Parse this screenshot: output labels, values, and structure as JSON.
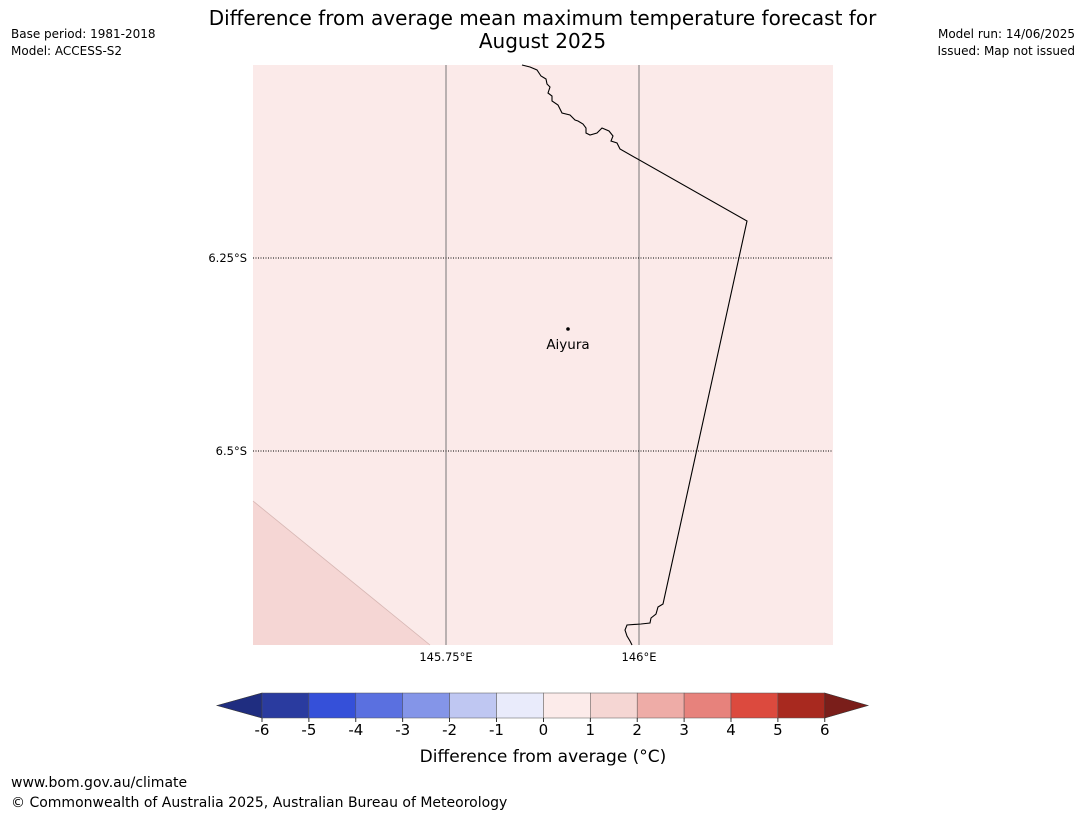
{
  "header": {
    "title_line1": "Difference from average mean maximum temperature forecast for",
    "title_line2": "August 2025",
    "base_period": "Base period: 1981-2018",
    "model": "Model: ACCESS-S2",
    "model_run": "Model run: 14/06/2025",
    "issued": "Issued: Map not issued"
  },
  "map": {
    "place": "Aiyura",
    "lat_labels": [
      "6.25°S",
      "6.5°S"
    ],
    "lon_labels": [
      "145.75°E",
      "146°E"
    ],
    "background_color": "#fbeae9",
    "corner_color": "#f5d6d4"
  },
  "colorbar": {
    "label": "Difference from average (°C)",
    "ticks": [
      "-6",
      "-5",
      "-4",
      "-3",
      "-2",
      "-1",
      "0",
      "1",
      "2",
      "3",
      "4",
      "5",
      "6"
    ],
    "colors": [
      "#2a3b9f",
      "#3550d9",
      "#5a70e0",
      "#8495e8",
      "#bfc7f2",
      "#e9ebfb",
      "#fcebea",
      "#f5d6d3",
      "#eeaca7",
      "#e7827c",
      "#dc4a3e",
      "#a8291f"
    ],
    "under_color": "#1f2d80",
    "over_color": "#7a1e1a"
  },
  "footer": {
    "url": "www.bom.gov.au/climate",
    "copyright": "© Commonwealth of Australia 2025, Australian Bureau of Meteorology"
  }
}
